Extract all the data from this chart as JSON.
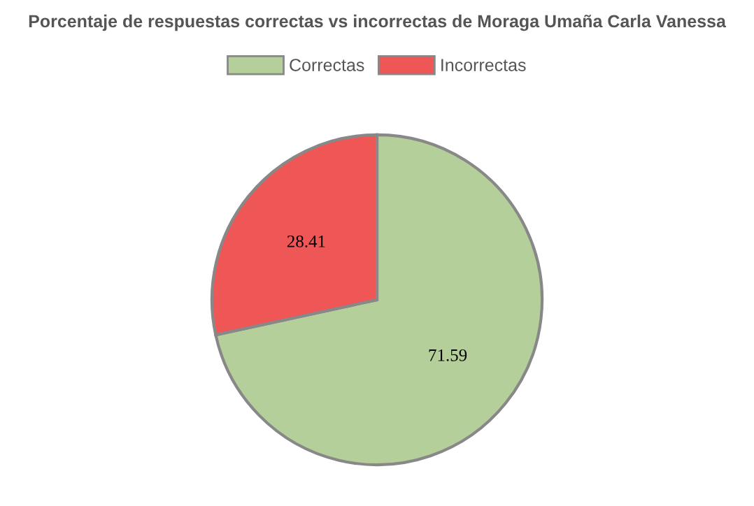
{
  "chart_data": {
    "type": "pie",
    "title": "Porcentaje de respuestas correctas vs incorrectas de Moraga Umaña Carla Vanessa",
    "categories": [
      "Correctas",
      "Incorrectas"
    ],
    "values": [
      71.59,
      28.41
    ],
    "colors": [
      "#b5cf9a",
      "#ef5656"
    ],
    "data_labels": true,
    "legend": "top"
  }
}
